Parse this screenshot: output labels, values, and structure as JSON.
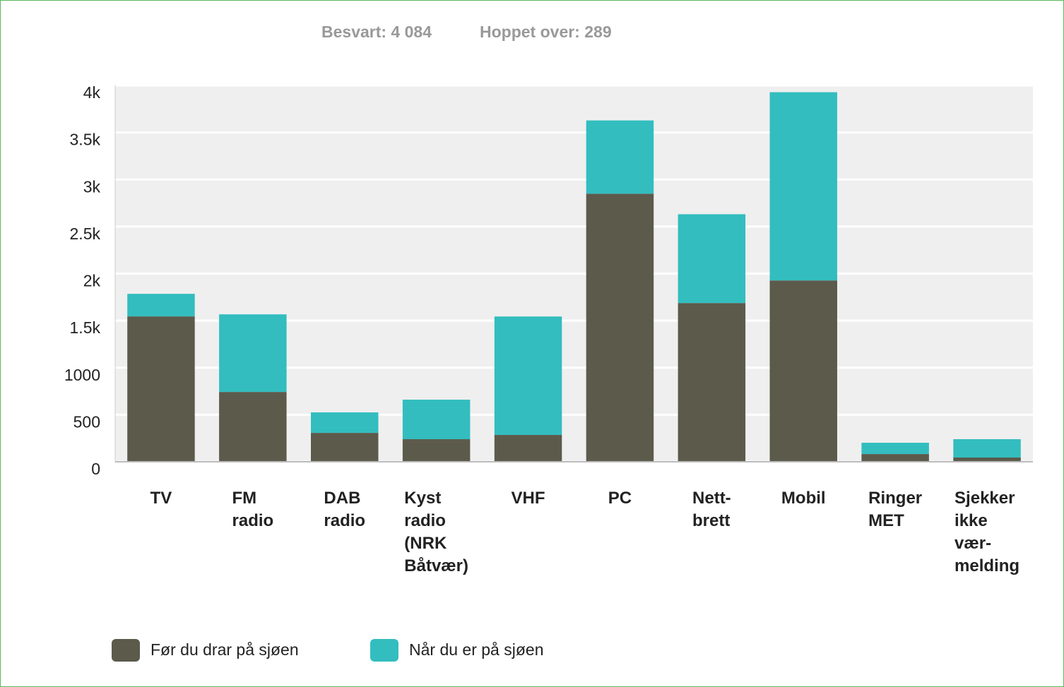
{
  "chart_data": {
    "type": "stacked_bar",
    "subtitle": [
      "Besvart: 4 084",
      "Hoppet over: 289"
    ],
    "categories": [
      "TV",
      "FM\nradio",
      "DAB\nradio",
      "Kyst\nradio\n(NRK\nBåtvær)",
      "VHF",
      "PC",
      "Nett-\nbrett",
      "Mobil",
      "Ringer\nMET",
      "Sjekker\nikke\nvær-\nmelding"
    ],
    "series": [
      {
        "name": "Før du drar på sjøen",
        "color": "#5c5a4b",
        "values": [
          1545,
          742,
          307,
          240,
          285,
          2849,
          1687,
          1927,
          82,
          45
        ]
      },
      {
        "name": "Når du er på sjøen",
        "color": "#33bdbf",
        "values": [
          240,
          825,
          218,
          420,
          1259,
          779,
          944,
          2001,
          120,
          195
        ]
      }
    ],
    "ylim": [
      0,
      4000
    ],
    "yticks": [
      0,
      500,
      1000,
      {
        "value": 1500,
        "label": "1.5k"
      },
      {
        "value": 2000,
        "label": "2k"
      },
      {
        "value": 2500,
        "label": "2.5k"
      },
      {
        "value": 3000,
        "label": "3k"
      },
      {
        "value": 3500,
        "label": "3.5k"
      },
      {
        "value": 4000,
        "label": "4k"
      }
    ],
    "grid": true,
    "legend": "bottom-left"
  }
}
